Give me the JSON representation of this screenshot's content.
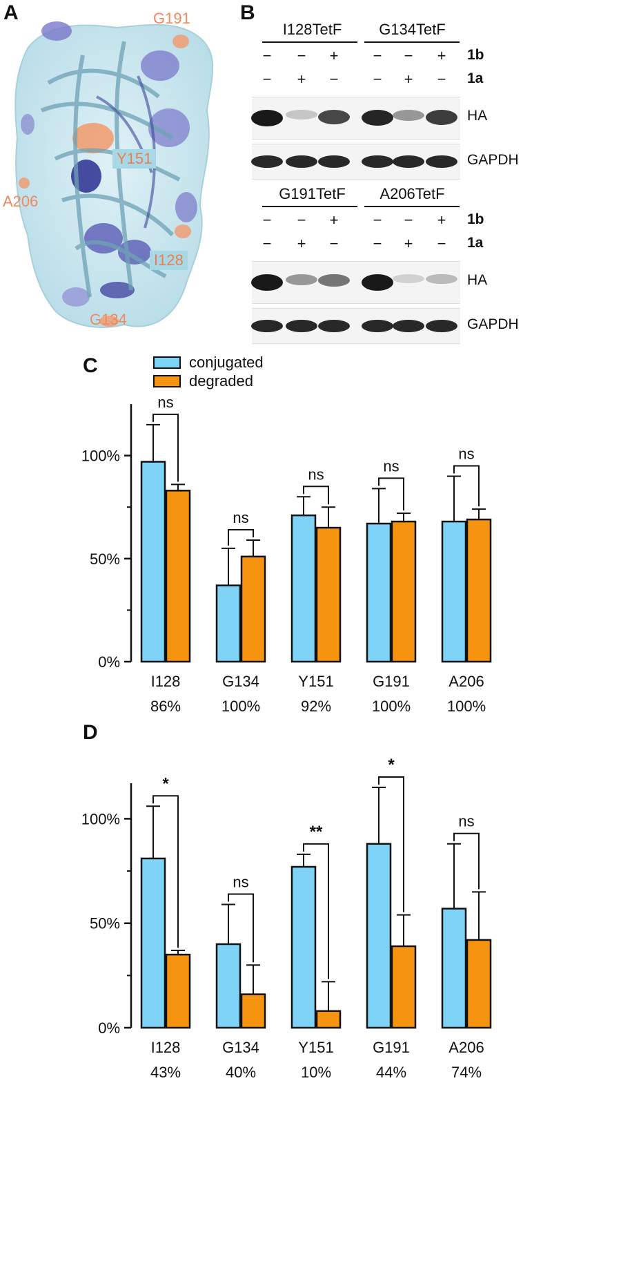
{
  "panels": {
    "a_letter": "A",
    "b_letter": "B",
    "c_letter": "C",
    "d_letter": "D"
  },
  "structure": {
    "labels": [
      "G191",
      "Y151",
      "A206",
      "I128",
      "G134"
    ]
  },
  "western_blot": {
    "top": {
      "groups": [
        "I128TetF",
        "G134TetF"
      ],
      "row1_signs": [
        "−",
        "−",
        "+",
        "−",
        "−",
        "+"
      ],
      "row2_signs": [
        "−",
        "+",
        "−",
        "−",
        "+",
        "−"
      ],
      "row1_label": "1b",
      "row2_label": "1a",
      "band1_label": "HA",
      "band2_label": "GAPDH",
      "ha_intensity": [
        1.0,
        0.25,
        0.8,
        0.95,
        0.45,
        0.85
      ]
    },
    "bottom": {
      "groups": [
        "G191TetF",
        "A206TetF"
      ],
      "row1_signs": [
        "−",
        "−",
        "+",
        "−",
        "−",
        "+"
      ],
      "row2_signs": [
        "−",
        "+",
        "−",
        "−",
        "+",
        "−"
      ],
      "row1_label": "1b",
      "row2_label": "1a",
      "band1_label": "HA",
      "band2_label": "GAPDH",
      "ha_intensity": [
        1.0,
        0.45,
        0.6,
        1.0,
        0.2,
        0.3
      ]
    }
  },
  "legend": {
    "conjugated": "conjugated",
    "degraded": "degraded"
  },
  "colors": {
    "conjugated": "#7fd3f7",
    "degraded": "#f7940f"
  },
  "chart_data": [
    {
      "type": "bar",
      "panel": "C",
      "categories": [
        "I128",
        "G134",
        "Y151",
        "G191",
        "A206"
      ],
      "sublabels": [
        "86%",
        "100%",
        "92%",
        "100%",
        "100%"
      ],
      "series": [
        {
          "name": "conjugated",
          "values": [
            97,
            37,
            71,
            67,
            68
          ],
          "errors": [
            18,
            18,
            9,
            17,
            22
          ]
        },
        {
          "name": "degraded",
          "values": [
            83,
            51,
            65,
            68,
            69
          ],
          "errors": [
            3,
            8,
            10,
            4,
            5
          ]
        }
      ],
      "significance": [
        "ns",
        "ns",
        "ns",
        "ns",
        "ns"
      ],
      "yticks": [
        "0%",
        "50%",
        "100%"
      ],
      "ylim": [
        0,
        125
      ]
    },
    {
      "type": "bar",
      "panel": "D",
      "categories": [
        "I128",
        "G134",
        "Y151",
        "G191",
        "A206"
      ],
      "sublabels": [
        "43%",
        "40%",
        "10%",
        "44%",
        "74%"
      ],
      "series": [
        {
          "name": "conjugated",
          "values": [
            81,
            40,
            77,
            88,
            57
          ],
          "errors": [
            25,
            19,
            6,
            27,
            31
          ]
        },
        {
          "name": "degraded",
          "values": [
            35,
            16,
            8,
            39,
            42
          ],
          "errors": [
            2,
            14,
            14,
            15,
            23
          ]
        }
      ],
      "significance": [
        "*",
        "ns",
        "**",
        "*",
        "ns"
      ],
      "yticks": [
        "0%",
        "50%",
        "100%"
      ],
      "ylim": [
        0,
        117
      ]
    }
  ]
}
